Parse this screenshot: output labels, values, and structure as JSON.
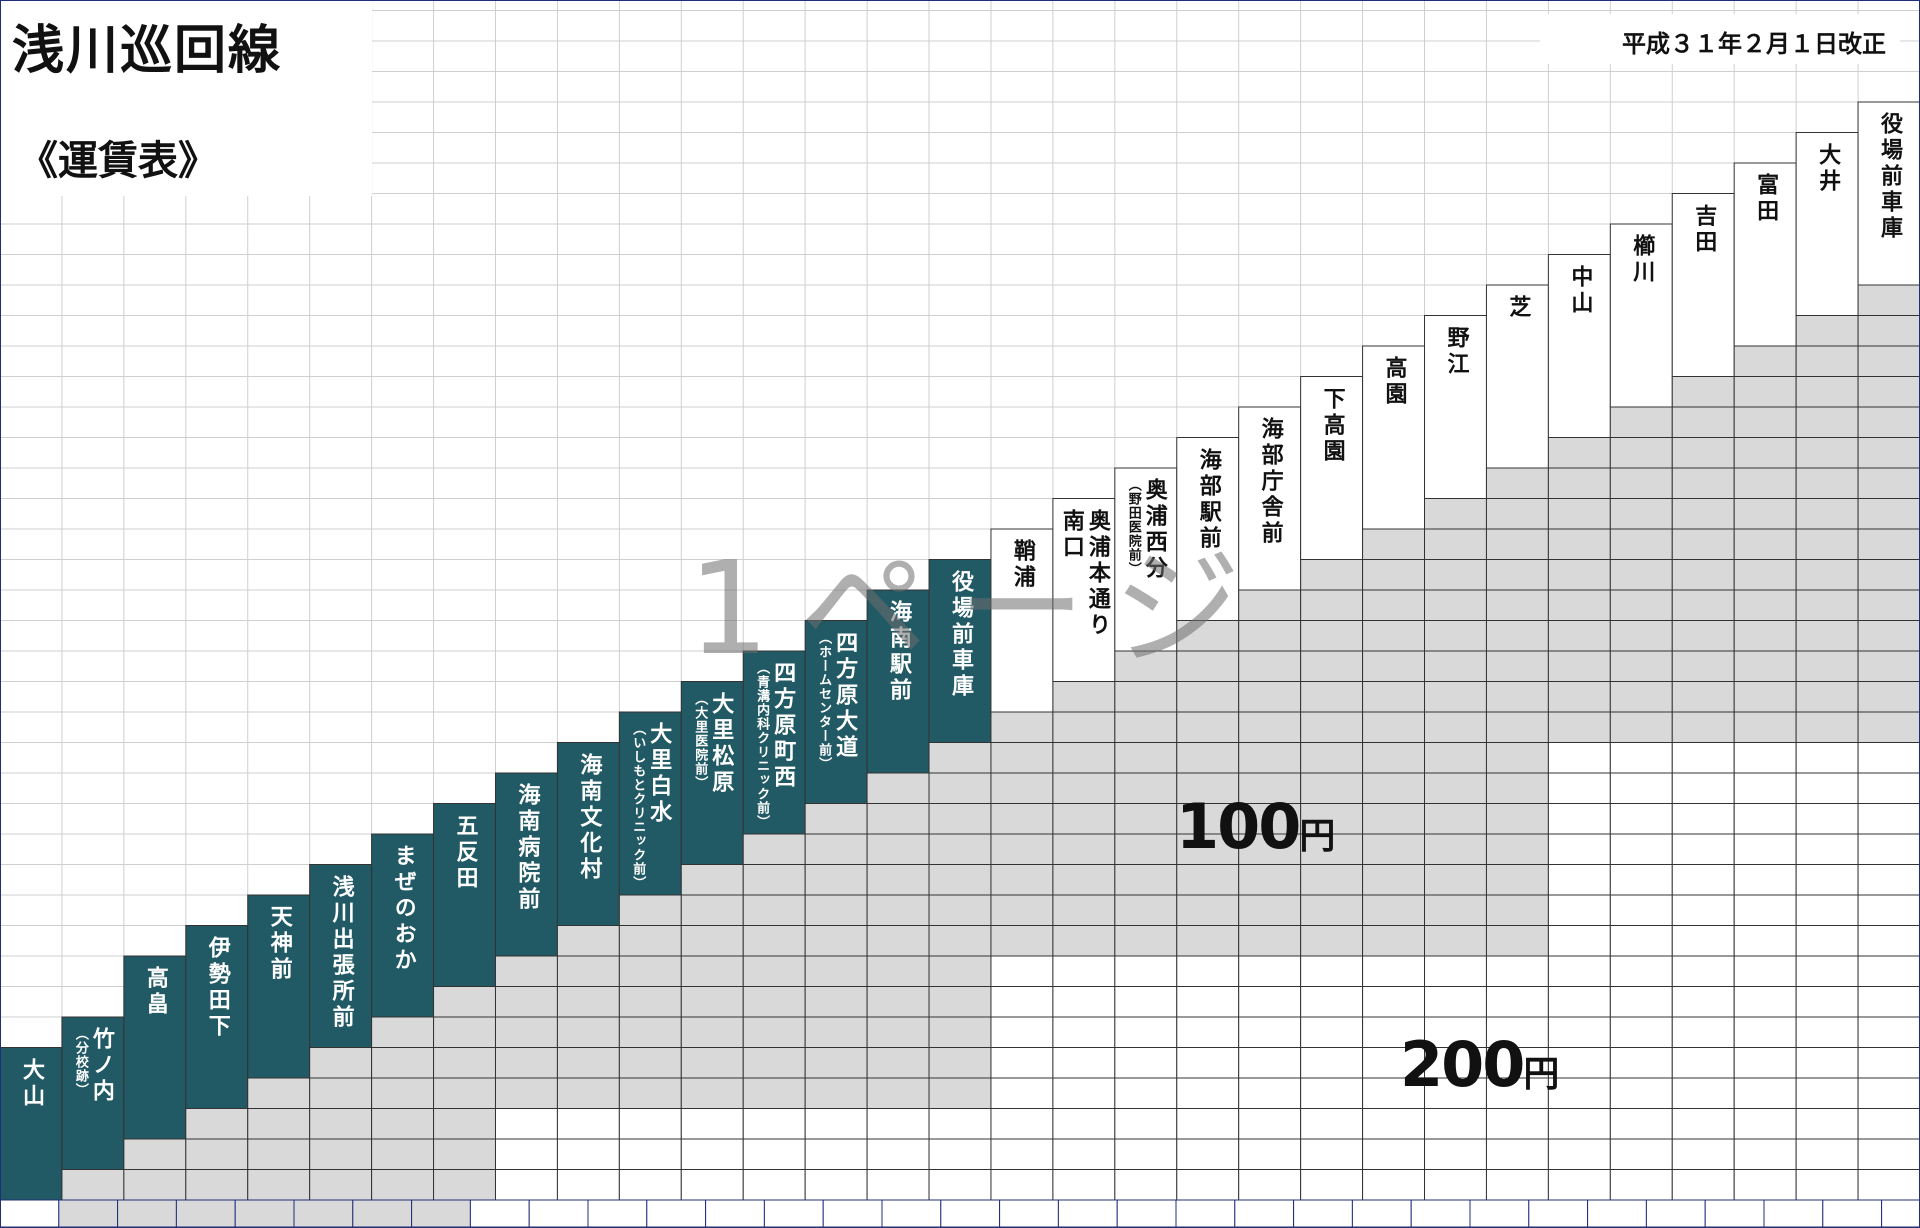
{
  "header": {
    "title": "浅川巡回線",
    "revision": "平成３１年２月１日改正",
    "subtitle": "《運賃表》"
  },
  "watermark": "1ページ",
  "stations": [
    {
      "lines": [
        "大山"
      ]
    },
    {
      "lines": [
        "竹ノ内"
      ],
      "note": "（分校跡）"
    },
    {
      "lines": [
        "高畠"
      ]
    },
    {
      "lines": [
        "伊勢田下"
      ]
    },
    {
      "lines": [
        "天神前"
      ]
    },
    {
      "lines": [
        "浅川出張所前"
      ]
    },
    {
      "lines": [
        "まぜのおか"
      ]
    },
    {
      "lines": [
        "五反田"
      ]
    },
    {
      "lines": [
        "海南病院前"
      ]
    },
    {
      "lines": [
        "海南文化村"
      ]
    },
    {
      "lines": [
        "大里白水"
      ],
      "note": "（いしもとクリニック前）"
    },
    {
      "lines": [
        "大里松原"
      ],
      "note": "（大里医院前）"
    },
    {
      "lines": [
        "四方原町西"
      ],
      "note": "（青溝内科クリニック前）"
    },
    {
      "lines": [
        "四方原大道"
      ],
      "note": "（ホームセンター前）"
    },
    {
      "lines": [
        "海南駅前"
      ]
    },
    {
      "lines": [
        "役場前車庫"
      ]
    },
    {
      "lines": [
        "鞘浦"
      ]
    },
    {
      "lines": [
        "奥浦本通り",
        "南口"
      ]
    },
    {
      "lines": [
        "奥浦西分"
      ],
      "note": "（野田医院前）"
    },
    {
      "lines": [
        "海部駅前"
      ]
    },
    {
      "lines": [
        "海部庁舎前"
      ]
    },
    {
      "lines": [
        "下高園"
      ]
    },
    {
      "lines": [
        "高園"
      ]
    },
    {
      "lines": [
        "野江"
      ]
    },
    {
      "lines": [
        "芝"
      ]
    },
    {
      "lines": [
        "中山"
      ]
    },
    {
      "lines": [
        "櫛川"
      ]
    },
    {
      "lines": [
        "吉田"
      ]
    },
    {
      "lines": [
        "富田"
      ]
    },
    {
      "lines": [
        "大井"
      ]
    },
    {
      "lines": [
        "役場前車庫"
      ]
    }
  ],
  "fares": [
    {
      "amount": 100,
      "unit": "円"
    },
    {
      "amount": 200,
      "unit": "円"
    }
  ]
}
